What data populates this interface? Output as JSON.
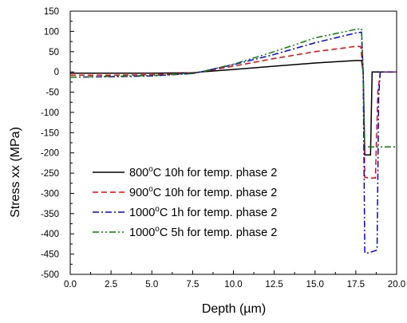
{
  "chart_data": {
    "type": "line",
    "xlabel": "Depth (µm)",
    "ylabel": "Stress xx (MPa)",
    "xlim": [
      0,
      20
    ],
    "ylim": [
      -500,
      150
    ],
    "x_ticks": [
      "0.0",
      "2.5",
      "5.0",
      "7.5",
      "10.0",
      "12.5",
      "15.0",
      "17.5",
      "20.0"
    ],
    "y_ticks": [
      "150",
      "100",
      "50",
      "0",
      "-50",
      "-100",
      "-150",
      "-200",
      "-250",
      "-300",
      "-350",
      "-400",
      "-450",
      "-500"
    ],
    "grid": false,
    "legend_position": "bottom-left",
    "series": [
      {
        "name": "800°C 10h for temp. phase 2",
        "name_parts": [
          "800",
          "o",
          "C 10h for temp. phase 2"
        ],
        "color": "#000000",
        "dash": "solid",
        "x": [
          0,
          2.5,
          5,
          7.5,
          8,
          10,
          12.5,
          15,
          17.5,
          17.85,
          17.95,
          18.05,
          18.1,
          18.4,
          18.5,
          18.6,
          20
        ],
        "y": [
          -3,
          -3,
          -3,
          -2,
          0,
          6,
          14,
          22,
          28,
          28,
          0,
          -205,
          -205,
          -205,
          0,
          0,
          0
        ]
      },
      {
        "name": "900°C 10h for temp. phase 2",
        "name_parts": [
          "900",
          "o",
          "C 10h for temp. phase 2"
        ],
        "color": "#ff0000",
        "dash": "dashed",
        "x": [
          0,
          2.5,
          5,
          7.5,
          8,
          10,
          12.5,
          15,
          17.5,
          17.8,
          17.95,
          18.05,
          18.3,
          18.7,
          18.85,
          19.0,
          20
        ],
        "y": [
          -8,
          -8,
          -7,
          -3,
          0,
          14,
          33,
          50,
          63,
          63,
          0,
          -260,
          -262,
          -262,
          -50,
          0,
          0
        ]
      },
      {
        "name": "1000°C 1h for temp. phase 2",
        "name_parts": [
          "1000",
          "o",
          "C 1h for temp. phase 2"
        ],
        "color": "#0000ff",
        "dash": "dashdot",
        "x": [
          0,
          2.5,
          5,
          7.5,
          8,
          10,
          12.5,
          15,
          17.5,
          17.85,
          17.95,
          18.05,
          18.3,
          18.8,
          18.9,
          19.0,
          20
        ],
        "y": [
          -13,
          -12,
          -10,
          -4,
          0,
          18,
          43,
          72,
          96,
          98,
          0,
          -447,
          -447,
          -440,
          -60,
          0,
          0
        ]
      },
      {
        "name": "1000°C 5h for temp. phase 2",
        "name_parts": [
          "1000",
          "o",
          "C 5h for temp. phase 2"
        ],
        "color": "#008000",
        "dash": "dashdotdot",
        "x": [
          0,
          2.5,
          5,
          7.5,
          8,
          10,
          12.5,
          15,
          17.5,
          17.85,
          17.95,
          18.05,
          18.3,
          20
        ],
        "y": [
          -13,
          -11,
          -9,
          -4,
          0,
          19,
          50,
          84,
          105,
          107,
          0,
          -185,
          -185,
          -185
        ]
      }
    ]
  }
}
